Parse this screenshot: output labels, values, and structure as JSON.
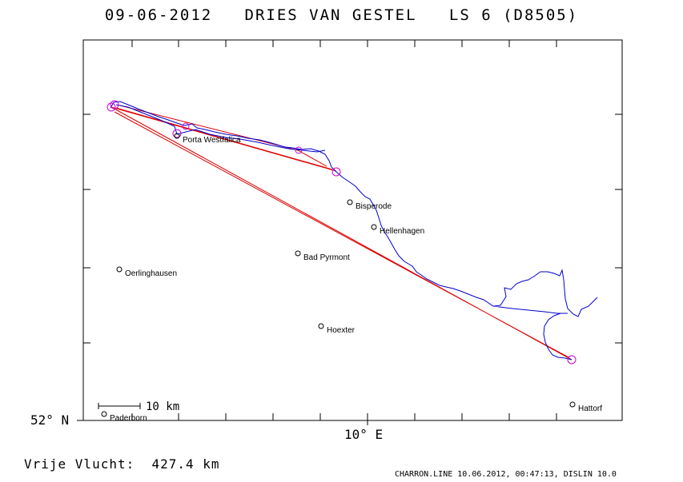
{
  "title": "09-06-2012   DRIES VAN GESTEL   LS 6 (D8505)",
  "axes": {
    "lat_label": "52° N",
    "lon_label": "10° E"
  },
  "scale_bar": {
    "label": "10 km"
  },
  "towns": [
    {
      "name": "Porta Westfalica",
      "lon": 8.93,
      "lat": 52.245
    },
    {
      "name": "Bisperode",
      "lon": 9.545,
      "lat": 52.07
    },
    {
      "name": "Hellenhagen",
      "lon": 9.605,
      "lat": 52.036
    },
    {
      "name": "Bad Pyrmont",
      "lon": 9.245,
      "lat": 51.99
    },
    {
      "name": "Oerlinghausen",
      "lon": 8.66,
      "lat": 51.96
    },
    {
      "name": "Hoexter",
      "lon": 9.38,
      "lat": 51.77
    },
    {
      "name": "Paderborn",
      "lon": 8.75,
      "lat": 51.72
    },
    {
      "name": "Hattorf",
      "lon": 10.35,
      "lat": 51.65
    }
  ],
  "turnpoints": [
    {
      "lon": 8.64,
      "lat": 52.305
    },
    {
      "lon": 9.505,
      "lat": 52.195
    },
    {
      "lon": 10.35,
      "lat": 51.83
    }
  ],
  "track_color": "#0000cc",
  "task_color": "#dd0000",
  "turnpoint_color": "#cc00cc",
  "footer_left": "Vrije Vlucht:  427.4 km",
  "footer_right": "CHARRON.LINE 10.06.2012, 00:47:13, DISLIN 10.0"
}
